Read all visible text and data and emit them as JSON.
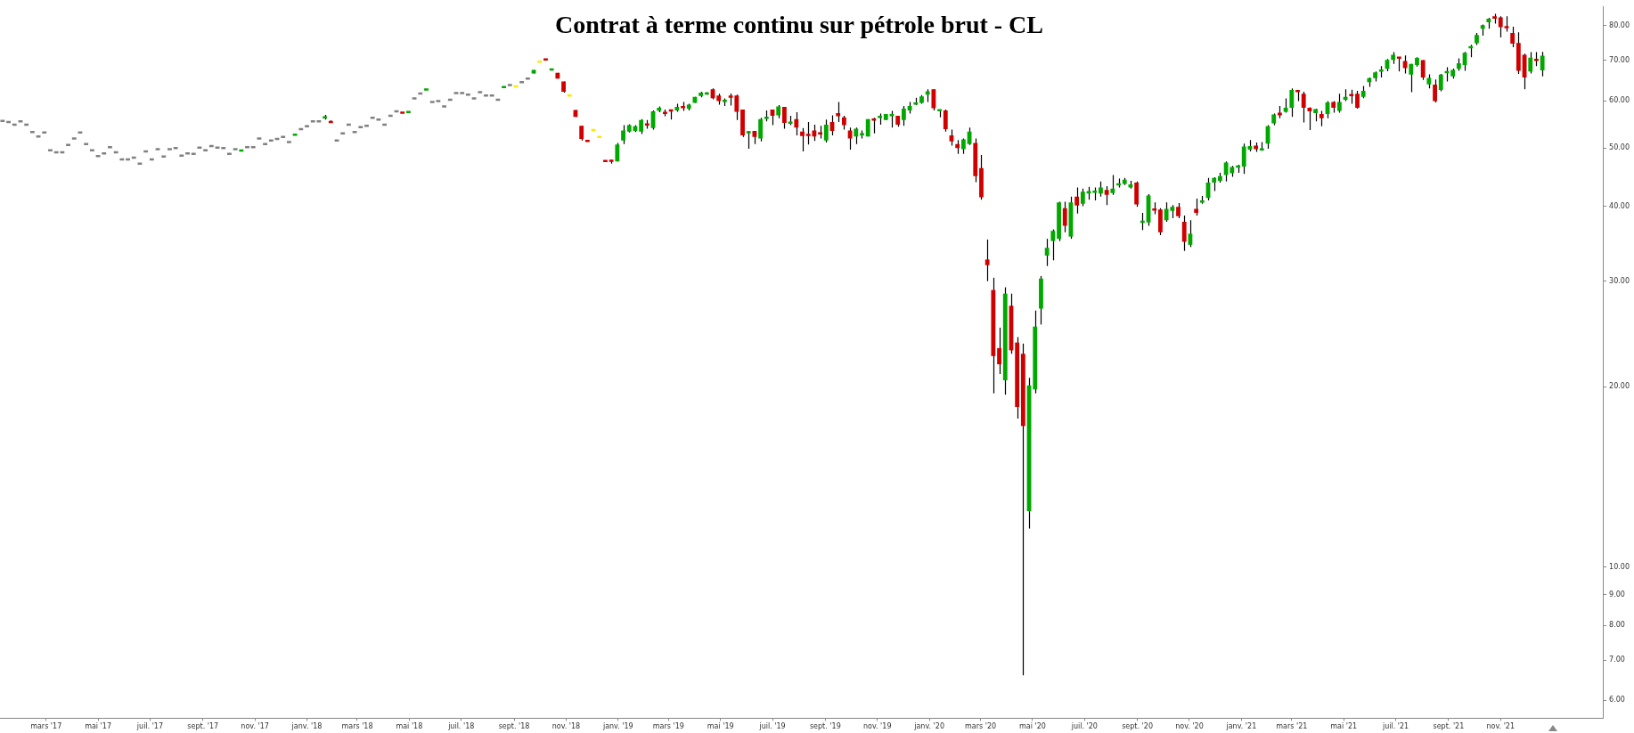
{
  "chart_data": {
    "type": "candlestick",
    "title": "Contrat à terme continu sur pétrole brut - CL",
    "log": true,
    "xlim": [
      "2017-01-06",
      "2022-03-01"
    ],
    "xticks": [
      {
        "value": "2017-03-01",
        "label": "mars '17"
      },
      {
        "value": "2017-05-01",
        "label": "mai '17"
      },
      {
        "value": "2017-07-01",
        "label": "juil. '17"
      },
      {
        "value": "2017-09-01",
        "label": "sept. '17"
      },
      {
        "value": "2017-11-01",
        "label": "nov. '17"
      },
      {
        "value": "2018-01-01",
        "label": "janv. '18"
      },
      {
        "value": "2018-03-01",
        "label": "mars '18"
      },
      {
        "value": "2018-05-01",
        "label": "mai '18"
      },
      {
        "value": "2018-07-01",
        "label": "juil. '18"
      },
      {
        "value": "2018-09-01",
        "label": "sept. '18"
      },
      {
        "value": "2018-11-01",
        "label": "nov. '18"
      },
      {
        "value": "2019-01-01",
        "label": "janv. '19"
      },
      {
        "value": "2019-03-01",
        "label": "mars '19"
      },
      {
        "value": "2019-05-01",
        "label": "mai '19"
      },
      {
        "value": "2019-07-01",
        "label": "juil. '19"
      },
      {
        "value": "2019-09-01",
        "label": "sept. '19"
      },
      {
        "value": "2019-11-01",
        "label": "nov. '19"
      },
      {
        "value": "2020-01-01",
        "label": "janv. '20"
      },
      {
        "value": "2020-03-01",
        "label": "mars '20"
      },
      {
        "value": "2020-05-01",
        "label": "mai '20"
      },
      {
        "value": "2020-07-01",
        "label": "juil. '20"
      },
      {
        "value": "2020-09-01",
        "label": "sept. '20"
      },
      {
        "value": "2020-11-01",
        "label": "nov. '20"
      },
      {
        "value": "2021-01-01",
        "label": "janv. '21"
      },
      {
        "value": "2021-03-01",
        "label": "mars '21"
      },
      {
        "value": "2021-05-01",
        "label": "mai '21"
      },
      {
        "value": "2021-07-01",
        "label": "juil. '21"
      },
      {
        "value": "2021-09-01",
        "label": "sept. '21"
      },
      {
        "value": "2021-11-01",
        "label": "nov. '21"
      }
    ],
    "ylim": [
      5.6,
      86
    ],
    "yticks": [
      {
        "value": 6,
        "label": "6.00"
      },
      {
        "value": 7,
        "label": "7.00"
      },
      {
        "value": 8,
        "label": "8.00"
      },
      {
        "value": 9,
        "label": "9.00"
      },
      {
        "value": 10,
        "label": "10.00"
      },
      {
        "value": 20,
        "label": "20.00"
      },
      {
        "value": 30,
        "label": "30.00"
      },
      {
        "value": 40,
        "label": "40.00"
      },
      {
        "value": 50,
        "label": "50.00"
      },
      {
        "value": 60,
        "label": "60.00"
      },
      {
        "value": 70,
        "label": "70.00"
      },
      {
        "value": 80,
        "label": "80.00"
      }
    ],
    "x": [
      "2017-01-09",
      "2017-01-16",
      "2017-01-23",
      "2017-01-30",
      "2017-02-06",
      "2017-02-13",
      "2017-02-20",
      "2017-02-27",
      "2017-03-06",
      "2017-03-13",
      "2017-03-20",
      "2017-03-27",
      "2017-04-03",
      "2017-04-10",
      "2017-04-17",
      "2017-04-24",
      "2017-05-01",
      "2017-05-08",
      "2017-05-15",
      "2017-05-22",
      "2017-05-29",
      "2017-06-05",
      "2017-06-12",
      "2017-06-19",
      "2017-06-26",
      "2017-07-03",
      "2017-07-10",
      "2017-07-17",
      "2017-07-24",
      "2017-07-31",
      "2017-08-07",
      "2017-08-14",
      "2017-08-21",
      "2017-08-28",
      "2017-09-04",
      "2017-09-11",
      "2017-09-18",
      "2017-09-25",
      "2017-10-02",
      "2017-10-09",
      "2017-10-16",
      "2017-10-23",
      "2017-10-30",
      "2017-11-06",
      "2017-11-13",
      "2017-11-20",
      "2017-11-27",
      "2017-12-04",
      "2017-12-11",
      "2017-12-18",
      "2017-12-25",
      "2018-01-01",
      "2018-01-08",
      "2018-01-15",
      "2018-01-22",
      "2018-01-29",
      "2018-02-05",
      "2018-02-12",
      "2018-02-19",
      "2018-02-26",
      "2018-03-05",
      "2018-03-12",
      "2018-03-19",
      "2018-03-26",
      "2018-04-02",
      "2018-04-09",
      "2018-04-16",
      "2018-04-23",
      "2018-04-30",
      "2018-05-07",
      "2018-05-14",
      "2018-05-21",
      "2018-05-28",
      "2018-06-04",
      "2018-06-11",
      "2018-06-18",
      "2018-06-25",
      "2018-07-02",
      "2018-07-09",
      "2018-07-16",
      "2018-07-23",
      "2018-07-30",
      "2018-08-06",
      "2018-08-13",
      "2018-08-20",
      "2018-08-27",
      "2018-09-03",
      "2018-09-10",
      "2018-09-17",
      "2018-09-24",
      "2018-10-01",
      "2018-10-08",
      "2018-10-15",
      "2018-10-22",
      "2018-10-29",
      "2018-11-05",
      "2018-11-12",
      "2018-11-19",
      "2018-11-26",
      "2018-12-03",
      "2018-12-10",
      "2018-12-17",
      "2018-12-24",
      "2018-12-31",
      "2019-01-07",
      "2019-01-14",
      "2019-01-21",
      "2019-01-28",
      "2019-02-04",
      "2019-02-11",
      "2019-02-18",
      "2019-02-25",
      "2019-03-04",
      "2019-03-11",
      "2019-03-18",
      "2019-03-25",
      "2019-04-01",
      "2019-04-08",
      "2019-04-15",
      "2019-04-22",
      "2019-04-29",
      "2019-05-06",
      "2019-05-13",
      "2019-05-20",
      "2019-05-27",
      "2019-06-03",
      "2019-06-10",
      "2019-06-17",
      "2019-06-24",
      "2019-07-01",
      "2019-07-08",
      "2019-07-15",
      "2019-07-22",
      "2019-07-29",
      "2019-08-05",
      "2019-08-12",
      "2019-08-19",
      "2019-08-26",
      "2019-09-02",
      "2019-09-09",
      "2019-09-16",
      "2019-09-23",
      "2019-09-30",
      "2019-10-07",
      "2019-10-14",
      "2019-10-21",
      "2019-10-28",
      "2019-11-04",
      "2019-11-11",
      "2019-11-18",
      "2019-11-25",
      "2019-12-02",
      "2019-12-09",
      "2019-12-16",
      "2019-12-23",
      "2019-12-30",
      "2020-01-06",
      "2020-01-13",
      "2020-01-20",
      "2020-01-27",
      "2020-02-03",
      "2020-02-10",
      "2020-02-17",
      "2020-02-24",
      "2020-03-02",
      "2020-03-09",
      "2020-03-16",
      "2020-03-23",
      "2020-03-30",
      "2020-04-06",
      "2020-04-13",
      "2020-04-20",
      "2020-04-27",
      "2020-05-04",
      "2020-05-11",
      "2020-05-18",
      "2020-05-25",
      "2020-06-01",
      "2020-06-08",
      "2020-06-15",
      "2020-06-22",
      "2020-06-29",
      "2020-07-06",
      "2020-07-13",
      "2020-07-20",
      "2020-07-27",
      "2020-08-03",
      "2020-08-10",
      "2020-08-17",
      "2020-08-24",
      "2020-08-31",
      "2020-09-07",
      "2020-09-14",
      "2020-09-21",
      "2020-09-28",
      "2020-10-05",
      "2020-10-12",
      "2020-10-19",
      "2020-10-26",
      "2020-11-02",
      "2020-11-09",
      "2020-11-16",
      "2020-11-23",
      "2020-11-30",
      "2020-12-07",
      "2020-12-14",
      "2020-12-21",
      "2020-12-28",
      "2021-01-04",
      "2021-01-11",
      "2021-01-18",
      "2021-01-25",
      "2021-02-01",
      "2021-02-08",
      "2021-02-15",
      "2021-02-22",
      "2021-03-01",
      "2021-03-08",
      "2021-03-15",
      "2021-03-22",
      "2021-03-29",
      "2021-04-05",
      "2021-04-12",
      "2021-04-19",
      "2021-04-26",
      "2021-05-03",
      "2021-05-10",
      "2021-05-17",
      "2021-05-24",
      "2021-05-31",
      "2021-06-07",
      "2021-06-14",
      "2021-06-21",
      "2021-06-28",
      "2021-07-05",
      "2021-07-12",
      "2021-07-19",
      "2021-07-26",
      "2021-08-02",
      "2021-08-09",
      "2021-08-16",
      "2021-08-23",
      "2021-08-30",
      "2021-09-06",
      "2021-09-13",
      "2021-09-20",
      "2021-09-27",
      "2021-10-04",
      "2021-10-11",
      "2021-10-18",
      "2021-10-25",
      "2021-11-01",
      "2021-11-08",
      "2021-11-15",
      "2021-11-22",
      "2021-11-29",
      "2021-12-06",
      "2021-12-13",
      "2021-12-20"
    ],
    "ohlc": [
      [
        55.5,
        55.5,
        55.5,
        55.5
      ],
      [
        55.3,
        55.3,
        55.3,
        55.3
      ],
      [
        54.7,
        54.7,
        54.7,
        54.7
      ],
      [
        55.4,
        55.4,
        55.4,
        55.4
      ],
      [
        54.7,
        54.7,
        54.7,
        54.7
      ],
      [
        53.2,
        53.2,
        53.2,
        53.2
      ],
      [
        52.3,
        52.3,
        52.3,
        52.3
      ],
      [
        53.1,
        53.1,
        53.1,
        53.1
      ],
      [
        49.6,
        49.6,
        49.6,
        49.6
      ],
      [
        49.2,
        49.2,
        49.2,
        49.2
      ],
      [
        49.2,
        49.2,
        49.2,
        49.2
      ],
      [
        50.6,
        50.6,
        50.6,
        50.6
      ],
      [
        51.9,
        51.9,
        51.9,
        51.9
      ],
      [
        53.1,
        53.1,
        53.1,
        53.1
      ],
      [
        50.8,
        50.8,
        50.8,
        50.8
      ],
      [
        49.6,
        49.6,
        49.6,
        49.6
      ],
      [
        48.5,
        48.5,
        48.5,
        48.5
      ],
      [
        49.0,
        49.0,
        49.0,
        49.0
      ],
      [
        50.2,
        50.2,
        50.2,
        50.2
      ],
      [
        49.2,
        49.2,
        49.2,
        49.2
      ],
      [
        47.9,
        47.9,
        47.9,
        47.9
      ],
      [
        47.9,
        47.9,
        47.9,
        47.9
      ],
      [
        48.2,
        48.2,
        48.2,
        48.2
      ],
      [
        47.1,
        47.1,
        47.1,
        47.1
      ],
      [
        49.4,
        49.4,
        49.4,
        49.4
      ],
      [
        47.9,
        47.9,
        47.9,
        47.9
      ],
      [
        49.8,
        49.8,
        49.8,
        49.8
      ],
      [
        48.4,
        48.4,
        48.4,
        48.4
      ],
      [
        49.8,
        49.8,
        49.8,
        49.8
      ],
      [
        50.0,
        50.0,
        50.0,
        50.0
      ],
      [
        48.6,
        48.6,
        48.6,
        48.6
      ],
      [
        49.0,
        49.0,
        49.0,
        49.0
      ],
      [
        48.9,
        48.9,
        48.9,
        48.9
      ],
      [
        50.1,
        50.1,
        50.1,
        50.1
      ],
      [
        49.6,
        49.6,
        49.6,
        49.6
      ],
      [
        50.4,
        50.4,
        50.4,
        50.4
      ],
      [
        50.1,
        50.1,
        50.1,
        50.1
      ],
      [
        50.0,
        50.0,
        50.0,
        50.0
      ],
      [
        48.9,
        48.9,
        48.9,
        48.9
      ],
      [
        49.8,
        49.8,
        49.8,
        49.8
      ],
      [
        49.5,
        49.6,
        49.5,
        49.6
      ],
      [
        50.2,
        50.2,
        50.2,
        50.2
      ],
      [
        50.2,
        50.2,
        50.2,
        50.2
      ],
      [
        51.9,
        51.9,
        51.9,
        51.9
      ],
      [
        50.8,
        50.8,
        50.8,
        50.8
      ],
      [
        51.5,
        51.5,
        51.5,
        51.5
      ],
      [
        51.8,
        51.8,
        51.8,
        51.8
      ],
      [
        52.2,
        52.2,
        52.2,
        52.2
      ],
      [
        51.2,
        51.2,
        51.2,
        51.2
      ],
      [
        52.6,
        52.7,
        52.6,
        52.7
      ],
      [
        53.8,
        53.8,
        53.8,
        53.8
      ],
      [
        54.4,
        54.4,
        54.4,
        54.4
      ],
      [
        55.4,
        55.4,
        55.4,
        55.4
      ],
      [
        55.4,
        55.4,
        55.4,
        55.4
      ],
      [
        56.2,
        56.8,
        55.8,
        56.4
      ],
      [
        55.4,
        55.6,
        55.1,
        55.2
      ],
      [
        51.5,
        51.5,
        51.5,
        51.5
      ],
      [
        52.9,
        52.9,
        52.9,
        52.9
      ],
      [
        54.7,
        54.7,
        54.7,
        54.7
      ],
      [
        53.2,
        53.2,
        53.2,
        53.2
      ],
      [
        54.2,
        54.2,
        54.2,
        54.2
      ],
      [
        54.5,
        54.5,
        54.5,
        54.5
      ],
      [
        56.2,
        56.2,
        56.2,
        56.2
      ],
      [
        55.8,
        55.8,
        55.8,
        55.8
      ],
      [
        54.7,
        54.7,
        54.7,
        54.7
      ],
      [
        56.6,
        56.6,
        56.6,
        56.6
      ],
      [
        57.6,
        57.6,
        57.6,
        57.6
      ],
      [
        57.4,
        57.4,
        57.2,
        57.2
      ],
      [
        57.4,
        57.5,
        57.4,
        57.5
      ],
      [
        60.5,
        60.5,
        60.5,
        60.5
      ],
      [
        61.7,
        61.7,
        61.7,
        61.7
      ],
      [
        62.6,
        62.7,
        62.6,
        62.7
      ],
      [
        59.7,
        59.7,
        59.7,
        59.7
      ],
      [
        59.9,
        59.9,
        59.9,
        59.9
      ],
      [
        58.7,
        58.7,
        58.7,
        58.7
      ],
      [
        60.2,
        60.2,
        60.2,
        60.2
      ],
      [
        61.8,
        61.8,
        61.8,
        61.8
      ],
      [
        61.8,
        61.8,
        61.8,
        61.8
      ],
      [
        61.4,
        61.4,
        61.4,
        61.4
      ],
      [
        60.5,
        60.5,
        60.5,
        60.5
      ],
      [
        62.0,
        62.0,
        62.0,
        62.0
      ],
      [
        61.2,
        61.2,
        61.2,
        61.2
      ],
      [
        61.2,
        61.2,
        61.2,
        61.2
      ],
      [
        60.2,
        60.2,
        60.2,
        60.2
      ],
      [
        63.2,
        63.3,
        63.2,
        63.3
      ],
      [
        63.7,
        63.7,
        63.7,
        63.7
      ],
      [
        63.4,
        63.4,
        63.4,
        63.4
      ],
      [
        64.4,
        64.4,
        64.4,
        64.4
      ],
      [
        65.3,
        65.3,
        65.3,
        65.3
      ],
      [
        66.6,
        67.5,
        66.6,
        67.5
      ],
      [
        69.7,
        69.7,
        69.7,
        69.7
      ],
      [
        70.4,
        70.4,
        70.2,
        70.2
      ],
      [
        67.6,
        67.7,
        67.6,
        67.7
      ],
      [
        66.8,
        66.8,
        65.3,
        65.3
      ],
      [
        64.6,
        64.6,
        61.9,
        62.1
      ],
      [
        61.2,
        61.2,
        61.2,
        61.2
      ],
      [
        57.9,
        57.9,
        56.4,
        56.4
      ],
      [
        54.5,
        54.5,
        51.5,
        51.8
      ],
      [
        51.5,
        51.5,
        51.3,
        51.3
      ],
      [
        53.6,
        53.6,
        53.6,
        53.6
      ],
      [
        52.2,
        52.2,
        52.2,
        52.2
      ],
      [
        47.7,
        47.7,
        47.5,
        47.5
      ],
      [
        47.8,
        47.8,
        47.1,
        47.5
      ],
      [
        47.5,
        51.0,
        47.5,
        50.7
      ],
      [
        51.5,
        54.6,
        50.8,
        53.5
      ],
      [
        53.3,
        54.8,
        53.1,
        54.6
      ],
      [
        53.4,
        54.6,
        53.2,
        54.4
      ],
      [
        53.3,
        55.9,
        52.8,
        55.7
      ],
      [
        54.9,
        55.7,
        53.9,
        54.6
      ],
      [
        54.0,
        57.8,
        53.7,
        57.6
      ],
      [
        57.7,
        58.7,
        57.4,
        58.4
      ],
      [
        57.5,
        58.0,
        56.5,
        57.0
      ],
      [
        58.0,
        58.0,
        55.8,
        57.6
      ],
      [
        57.8,
        59.3,
        57.5,
        58.6
      ],
      [
        58.7,
        59.7,
        57.7,
        58.4
      ],
      [
        58.2,
        59.3,
        57.8,
        59.1
      ],
      [
        59.5,
        60.9,
        59.5,
        60.9
      ],
      [
        61.1,
        62.1,
        60.8,
        61.9
      ],
      [
        61.5,
        62.0,
        61.4,
        61.9
      ],
      [
        62.7,
        62.9,
        60.3,
        60.6
      ],
      [
        61.2,
        61.6,
        59.1,
        59.9
      ],
      [
        59.8,
        60.5,
        58.8,
        60.1
      ],
      [
        61.1,
        61.7,
        58.9,
        60.8
      ],
      [
        61.2,
        61.4,
        55.7,
        57.5
      ],
      [
        58.0,
        58.0,
        52.2,
        52.5
      ],
      [
        53.0,
        53.4,
        49.9,
        53.3
      ],
      [
        53.4,
        53.4,
        50.8,
        52.2
      ],
      [
        51.9,
        56.2,
        51.3,
        55.9
      ],
      [
        56.0,
        57.8,
        55.4,
        56.4
      ],
      [
        58.0,
        58.0,
        54.6,
        56.6
      ],
      [
        56.7,
        59.0,
        56.1,
        58.7
      ],
      [
        58.6,
        58.6,
        53.9,
        55.1
      ],
      [
        55.0,
        56.6,
        54.6,
        55.3
      ],
      [
        55.9,
        57.4,
        52.5,
        54.1
      ],
      [
        53.3,
        54.0,
        49.4,
        52.4
      ],
      [
        52.8,
        55.3,
        50.7,
        52.4
      ],
      [
        53.5,
        54.7,
        51.4,
        52.3
      ],
      [
        53.0,
        54.5,
        51.9,
        52.8
      ],
      [
        51.5,
        55.8,
        51.1,
        54.7
      ],
      [
        55.3,
        56.7,
        52.5,
        53.4
      ],
      [
        57.2,
        59.7,
        55.3,
        56.5
      ],
      [
        56.3,
        56.6,
        53.7,
        54.6
      ],
      [
        53.5,
        54.1,
        49.7,
        51.9
      ],
      [
        52.3,
        54.1,
        50.8,
        53.9
      ],
      [
        52.6,
        53.5,
        51.9,
        52.9
      ],
      [
        52.3,
        55.9,
        52.3,
        55.9
      ],
      [
        56.0,
        56.2,
        52.9,
        55.6
      ],
      [
        56.3,
        57.1,
        54.7,
        56.5
      ],
      [
        55.7,
        57.0,
        55.7,
        57.0
      ],
      [
        56.5,
        57.7,
        54.1,
        57.0
      ],
      [
        56.6,
        56.6,
        54.3,
        54.7
      ],
      [
        55.7,
        58.8,
        54.5,
        58.2
      ],
      [
        57.8,
        59.7,
        57.1,
        58.8
      ],
      [
        59.2,
        60.7,
        59.0,
        59.5
      ],
      [
        59.5,
        61.3,
        59.3,
        61.0
      ],
      [
        61.4,
        62.7,
        59.7,
        62.2
      ],
      [
        62.7,
        62.7,
        57.8,
        58.3
      ],
      [
        57.7,
        58.0,
        56.3,
        58.0
      ],
      [
        57.8,
        58.0,
        53.3,
        53.8
      ],
      [
        52.5,
        53.7,
        50.5,
        51.3
      ],
      [
        50.8,
        51.6,
        48.9,
        50.0
      ],
      [
        49.8,
        51.9,
        48.9,
        51.7
      ],
      [
        50.8,
        54.1,
        50.6,
        53.3
      ],
      [
        51.0,
        51.9,
        43.9,
        44.9
      ],
      [
        46.3,
        48.7,
        41.0,
        41.4
      ],
      [
        32.6,
        35.2,
        30.0,
        31.9
      ],
      [
        29.0,
        30.4,
        19.5,
        22.5
      ],
      [
        23.2,
        25.1,
        21.0,
        21.8
      ],
      [
        20.5,
        29.3,
        19.4,
        28.6
      ],
      [
        27.3,
        28.6,
        22.7,
        23.0
      ],
      [
        23.7,
        24.2,
        17.7,
        18.5
      ],
      [
        22.7,
        23.6,
        6.6,
        17.2
      ],
      [
        12.4,
        20.7,
        11.6,
        20.1
      ],
      [
        19.8,
        26.8,
        19.5,
        25.2
      ],
      [
        27.0,
        30.6,
        25.4,
        30.3
      ],
      [
        33.1,
        35.3,
        31.8,
        34.1
      ],
      [
        35.0,
        36.6,
        32.5,
        36.4
      ],
      [
        35.3,
        40.7,
        35.0,
        40.6
      ],
      [
        39.7,
        40.7,
        36.2,
        37.1
      ],
      [
        35.6,
        41.5,
        35.3,
        40.6
      ],
      [
        41.5,
        43.0,
        38.9,
        40.1
      ],
      [
        40.4,
        42.8,
        40.0,
        42.3
      ],
      [
        42.0,
        43.1,
        41.0,
        42.4
      ],
      [
        42.2,
        43.0,
        40.9,
        42.4
      ],
      [
        42.0,
        44.0,
        41.5,
        43.0
      ],
      [
        42.6,
        43.2,
        40.2,
        41.8
      ],
      [
        42.1,
        45.1,
        41.8,
        42.8
      ],
      [
        43.4,
        44.5,
        43.0,
        43.6
      ],
      [
        43.6,
        44.6,
        43.4,
        44.3
      ],
      [
        43.0,
        44.1,
        42.8,
        43.5
      ],
      [
        43.8,
        44.0,
        39.9,
        40.3
      ],
      [
        37.6,
        39.0,
        36.5,
        37.8
      ],
      [
        37.6,
        41.9,
        37.1,
        41.7
      ],
      [
        39.6,
        40.6,
        38.8,
        39.4
      ],
      [
        39.5,
        39.7,
        35.8,
        36.2
      ],
      [
        37.9,
        40.6,
        37.7,
        39.6
      ],
      [
        39.3,
        40.2,
        38.2,
        39.9
      ],
      [
        39.9,
        40.5,
        38.2,
        38.5
      ],
      [
        37.7,
        38.6,
        33.7,
        34.9
      ],
      [
        34.5,
        37.9,
        34.2,
        36.0
      ],
      [
        39.6,
        41.2,
        38.6,
        39.0
      ],
      [
        40.6,
        41.6,
        40.4,
        40.9
      ],
      [
        41.3,
        44.6,
        40.9,
        43.8
      ],
      [
        43.8,
        44.7,
        42.4,
        44.6
      ],
      [
        44.1,
        45.5,
        43.8,
        44.9
      ],
      [
        45.1,
        47.5,
        44.0,
        47.3
      ],
      [
        45.4,
        46.7,
        44.8,
        46.5
      ],
      [
        46.5,
        46.9,
        45.5,
        46.7
      ],
      [
        46.6,
        50.9,
        45.3,
        50.3
      ],
      [
        49.7,
        51.6,
        49.4,
        50.4
      ],
      [
        50.5,
        51.1,
        49.3,
        49.8
      ],
      [
        49.6,
        51.2,
        49.5,
        49.9
      ],
      [
        50.9,
        54.6,
        49.9,
        54.4
      ],
      [
        55.0,
        57.1,
        54.6,
        56.9
      ],
      [
        57.3,
        58.8,
        56.1,
        56.7
      ],
      [
        57.5,
        60.5,
        57.3,
        58.4
      ],
      [
        58.4,
        62.9,
        56.4,
        62.5
      ],
      [
        62.4,
        62.4,
        59.9,
        62.1
      ],
      [
        61.6,
        62.1,
        55.2,
        58.4
      ],
      [
        58.4,
        58.5,
        53.6,
        57.6
      ],
      [
        57.2,
        58.2,
        55.4,
        58.1
      ],
      [
        57.0,
        57.7,
        54.4,
        56.1
      ],
      [
        57.0,
        59.9,
        56.1,
        59.6
      ],
      [
        59.7,
        59.9,
        57.3,
        58.4
      ],
      [
        57.7,
        61.6,
        57.3,
        59.7
      ],
      [
        60.2,
        62.7,
        59.9,
        60.9
      ],
      [
        61.4,
        62.6,
        59.3,
        61.2
      ],
      [
        61.6,
        62.3,
        58.2,
        58.4
      ],
      [
        60.9,
        63.5,
        60.6,
        62.3
      ],
      [
        64.4,
        65.6,
        63.3,
        65.4
      ],
      [
        65.4,
        67.1,
        64.6,
        66.9
      ],
      [
        67.3,
        68.5,
        65.6,
        67.4
      ],
      [
        67.8,
        70.4,
        67.2,
        70.2
      ],
      [
        70.2,
        72.3,
        69.1,
        71.6
      ],
      [
        70.9,
        70.9,
        67.1,
        70.6
      ],
      [
        69.9,
        71.4,
        66.6,
        68.0
      ],
      [
        66.3,
        69.1,
        62.0,
        69.1
      ],
      [
        68.8,
        70.9,
        68.4,
        70.7
      ],
      [
        70.1,
        70.1,
        65.0,
        65.6
      ],
      [
        63.9,
        66.4,
        62.9,
        65.5
      ],
      [
        63.8,
        65.1,
        59.6,
        59.9
      ],
      [
        62.5,
        66.5,
        62.2,
        66.3
      ],
      [
        66.8,
        68.2,
        64.6,
        67.1
      ],
      [
        65.9,
        67.9,
        65.3,
        67.5
      ],
      [
        67.8,
        70.6,
        67.3,
        69.3
      ],
      [
        68.8,
        72.4,
        67.3,
        72.1
      ],
      [
        73.4,
        74.4,
        70.9,
        73.9
      ],
      [
        74.8,
        77.8,
        74.3,
        77.2
      ],
      [
        79.1,
        80.4,
        77.0,
        80.2
      ],
      [
        81.1,
        82.5,
        79.1,
        82.2
      ],
      [
        83.0,
        83.8,
        80.7,
        82.2
      ],
      [
        82.6,
        83.0,
        76.5,
        79.6
      ],
      [
        79.7,
        83.0,
        78.2,
        79.4
      ],
      [
        77.8,
        79.7,
        73.7,
        74.7
      ],
      [
        74.9,
        78.0,
        66.5,
        67.3
      ],
      [
        71.6,
        71.9,
        62.7,
        65.6
      ],
      [
        67.1,
        72.3,
        66.6,
        70.8
      ],
      [
        70.4,
        72.3,
        68.5,
        70.0
      ],
      [
        67.4,
        72.4,
        65.9,
        71.3
      ]
    ],
    "colors": [
      "#808080",
      "#808080",
      "#808080",
      "#808080",
      "#808080",
      "#808080",
      "#808080",
      "#808080",
      "#808080",
      "#808080",
      "#808080",
      "#808080",
      "#808080",
      "#808080",
      "#808080",
      "#808080",
      "#808080",
      "#808080",
      "#808080",
      "#808080",
      "#808080",
      "#808080",
      "#808080",
      "#808080",
      "#808080",
      "#808080",
      "#808080",
      "#808080",
      "#808080",
      "#808080",
      "#808080",
      "#808080",
      "#808080",
      "#808080",
      "#808080",
      "#808080",
      "#808080",
      "#808080",
      "#808080",
      "#808080",
      "#00a800",
      "#808080",
      "#808080",
      "#808080",
      "#808080",
      "#808080",
      "#808080",
      "#808080",
      "#808080",
      "#00a800",
      "#808080",
      "#808080",
      "#808080",
      "#808080",
      "#00a800",
      "#d00000",
      "#808080",
      "#808080",
      "#808080",
      "#808080",
      "#808080",
      "#808080",
      "#808080",
      "#808080",
      "#808080",
      "#808080",
      "#808080",
      "#d00000",
      "#00a800",
      "#808080",
      "#808080",
      "#00a800",
      "#808080",
      "#808080",
      "#808080",
      "#808080",
      "#808080",
      "#808080",
      "#808080",
      "#808080",
      "#808080",
      "#808080",
      "#808080",
      "#808080",
      "#00a800",
      "#808080",
      "#ffe800",
      "#808080",
      "#808080",
      "#00a800",
      "#ffe800",
      "#d00000",
      "#00a800",
      "#d00000",
      "#d00000",
      "#ffe800",
      "#d00000",
      "#d00000",
      "#d00000",
      "#ffe800",
      "#ffe800",
      "#d00000",
      "#d00000",
      "#00a800",
      "#00a800",
      "#00a800",
      "#00a800",
      "#00a800",
      "#d00000",
      "#00a800",
      "#00a800",
      "#d00000",
      "#d00000",
      "#00a800",
      "#d00000",
      "#00a800",
      "#00a800",
      "#00a800",
      "#00a800",
      "#d00000",
      "#d00000",
      "#00a800",
      "#d00000",
      "#d00000",
      "#d00000",
      "#00a800",
      "#d00000",
      "#00a800",
      "#00a800",
      "#d00000",
      "#00a800",
      "#d00000",
      "#00a800",
      "#d00000",
      "#d00000",
      "#d00000",
      "#d00000",
      "#d00000",
      "#00a800",
      "#d00000",
      "#d00000",
      "#d00000",
      "#d00000",
      "#00a800",
      "#00a800",
      "#00a800",
      "#d00000",
      "#00a800",
      "#00a800",
      "#00a800",
      "#d00000",
      "#00a800",
      "#00a800",
      "#00a800",
      "#00a800",
      "#00a800",
      "#d00000",
      "#00a800",
      "#d00000",
      "#d00000",
      "#d00000",
      "#00a800",
      "#00a800",
      "#d00000",
      "#d00000",
      "#d00000",
      "#d00000",
      "#d00000",
      "#00a800",
      "#d00000",
      "#d00000",
      "#d00000",
      "#00a800",
      "#00a800",
      "#00a800",
      "#00a800",
      "#00a800",
      "#00a800",
      "#d00000",
      "#00a800",
      "#d00000",
      "#00a800",
      "#00a800",
      "#00a800",
      "#00a800",
      "#d00000",
      "#00a800",
      "#00a800",
      "#00a800",
      "#00a800",
      "#d00000",
      "#00a800",
      "#00a800",
      "#d00000",
      "#d00000",
      "#00a800",
      "#00a800",
      "#d00000",
      "#d00000",
      "#00a800",
      "#d00000",
      "#00a800",
      "#00a800",
      "#00a800",
      "#00a800",
      "#00a800",
      "#00a800",
      "#00a800",
      "#00a800",
      "#00a800",
      "#d00000",
      "#00a800",
      "#00a800",
      "#00a800",
      "#d00000",
      "#00a800",
      "#00a800",
      "#d00000",
      "#d00000",
      "#d00000",
      "#00a800",
      "#d00000",
      "#00a800",
      "#d00000",
      "#00a800",
      "#00a800",
      "#d00000",
      "#d00000",
      "#00a800",
      "#00a800",
      "#00a800",
      "#00a800",
      "#00a800",
      "#00a800",
      "#d00000",
      "#d00000",
      "#00a800",
      "#00a800",
      "#d00000",
      "#00a800",
      "#d00000",
      "#00a800",
      "#00a800",
      "#00a800",
      "#00a800",
      "#00a800",
      "#00a800",
      "#00a800",
      "#00a800",
      "#00a800",
      "#d00000",
      "#d00000",
      "#d00000",
      "#d00000",
      "#d00000",
      "#d00000",
      "#00a800",
      "#d00000",
      "#00a800"
    ]
  }
}
